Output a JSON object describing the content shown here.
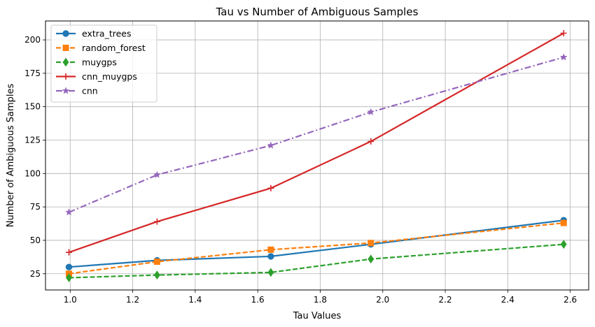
{
  "chart_data": {
    "type": "line",
    "title": "Tau vs Number of Ambiguous Samples",
    "xlabel": "Tau Values",
    "ylabel": "Number of Ambiguous Samples",
    "xlim": [
      0.921,
      2.659
    ],
    "ylim": [
      12.85,
      214.15
    ],
    "xticks": [
      1.0,
      1.2,
      1.4,
      1.6,
      1.8,
      2.0,
      2.2,
      2.4,
      2.6
    ],
    "xtick_labels": [
      "1.0",
      "1.2",
      "1.4",
      "1.6",
      "1.8",
      "2.0",
      "2.2",
      "2.4",
      "2.6"
    ],
    "yticks": [
      25,
      50,
      75,
      100,
      125,
      150,
      175,
      200
    ],
    "ytick_labels": [
      "25",
      "50",
      "75",
      "100",
      "125",
      "150",
      "175",
      "200"
    ],
    "grid": true,
    "legend_position": "top-left",
    "x": [
      0.996,
      1.278,
      1.642,
      1.962,
      2.579
    ],
    "series": [
      {
        "name": "extra_trees",
        "values": [
          30,
          35,
          38,
          47,
          65
        ],
        "color": "#1f77b4",
        "dash": "solid",
        "marker": "circle"
      },
      {
        "name": "random_forest",
        "values": [
          25,
          34,
          43,
          48,
          63
        ],
        "color": "#ff7f0e",
        "dash": "dashed",
        "marker": "square"
      },
      {
        "name": "muygps",
        "values": [
          22,
          24,
          26,
          36,
          47
        ],
        "color": "#2ca02c",
        "dash": "dashed",
        "marker": "diamond"
      },
      {
        "name": "cnn_muygps",
        "values": [
          41,
          64,
          89,
          124,
          205
        ],
        "color": "#d62728",
        "dash": "solid",
        "marker": "plus"
      },
      {
        "name": "cnn",
        "values": [
          71,
          99,
          121,
          146,
          187
        ],
        "color": "#9467bd",
        "dash": "dashdot",
        "marker": "star"
      }
    ]
  }
}
